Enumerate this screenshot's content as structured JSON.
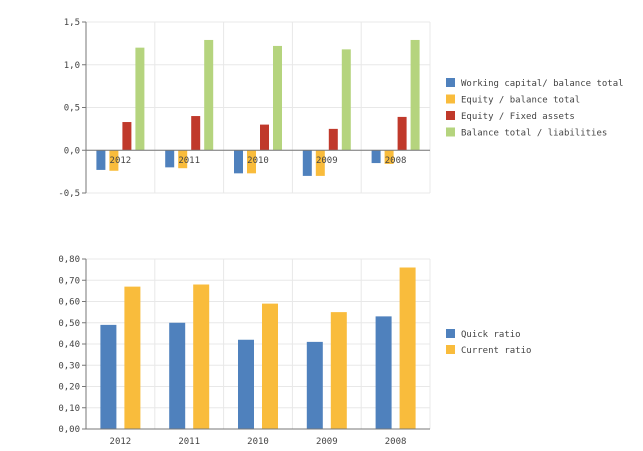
{
  "chart_data": [
    {
      "type": "bar",
      "categories": [
        "2012",
        "2011",
        "2010",
        "2009",
        "2008"
      ],
      "series": [
        {
          "name": "Working capital/ balance total",
          "color": "#4f81bd",
          "values": [
            -0.23,
            -0.2,
            -0.27,
            -0.3,
            -0.15
          ]
        },
        {
          "name": "Equity / balance total",
          "color": "#f9bc3c",
          "values": [
            -0.24,
            -0.21,
            -0.27,
            -0.3,
            -0.16
          ]
        },
        {
          "name": "Equity / Fixed assets",
          "color": "#c0392b",
          "values": [
            0.33,
            0.4,
            0.3,
            0.25,
            0.39
          ]
        },
        {
          "name": "Balance total / liabilities",
          "color": "#b5d47e",
          "values": [
            1.2,
            1.29,
            1.22,
            1.18,
            1.29
          ]
        }
      ],
      "ylim": [
        -0.5,
        1.5
      ],
      "yticks": [
        "-0,5",
        "0,0",
        "0,5",
        "1,0",
        "1,5"
      ],
      "grid": true,
      "legend": "right"
    },
    {
      "type": "bar",
      "categories": [
        "2012",
        "2011",
        "2010",
        "2009",
        "2008"
      ],
      "series": [
        {
          "name": "Quick ratio",
          "color": "#4f81bd",
          "values": [
            0.49,
            0.5,
            0.42,
            0.41,
            0.53
          ]
        },
        {
          "name": "Current ratio",
          "color": "#f9bc3c",
          "values": [
            0.67,
            0.68,
            0.59,
            0.55,
            0.76
          ]
        }
      ],
      "ylim": [
        0,
        0.8
      ],
      "yticks": [
        "0,00",
        "0,10",
        "0,20",
        "0,30",
        "0,40",
        "0,50",
        "0,60",
        "0,70",
        "0,80"
      ],
      "grid": true,
      "legend": "right"
    }
  ]
}
